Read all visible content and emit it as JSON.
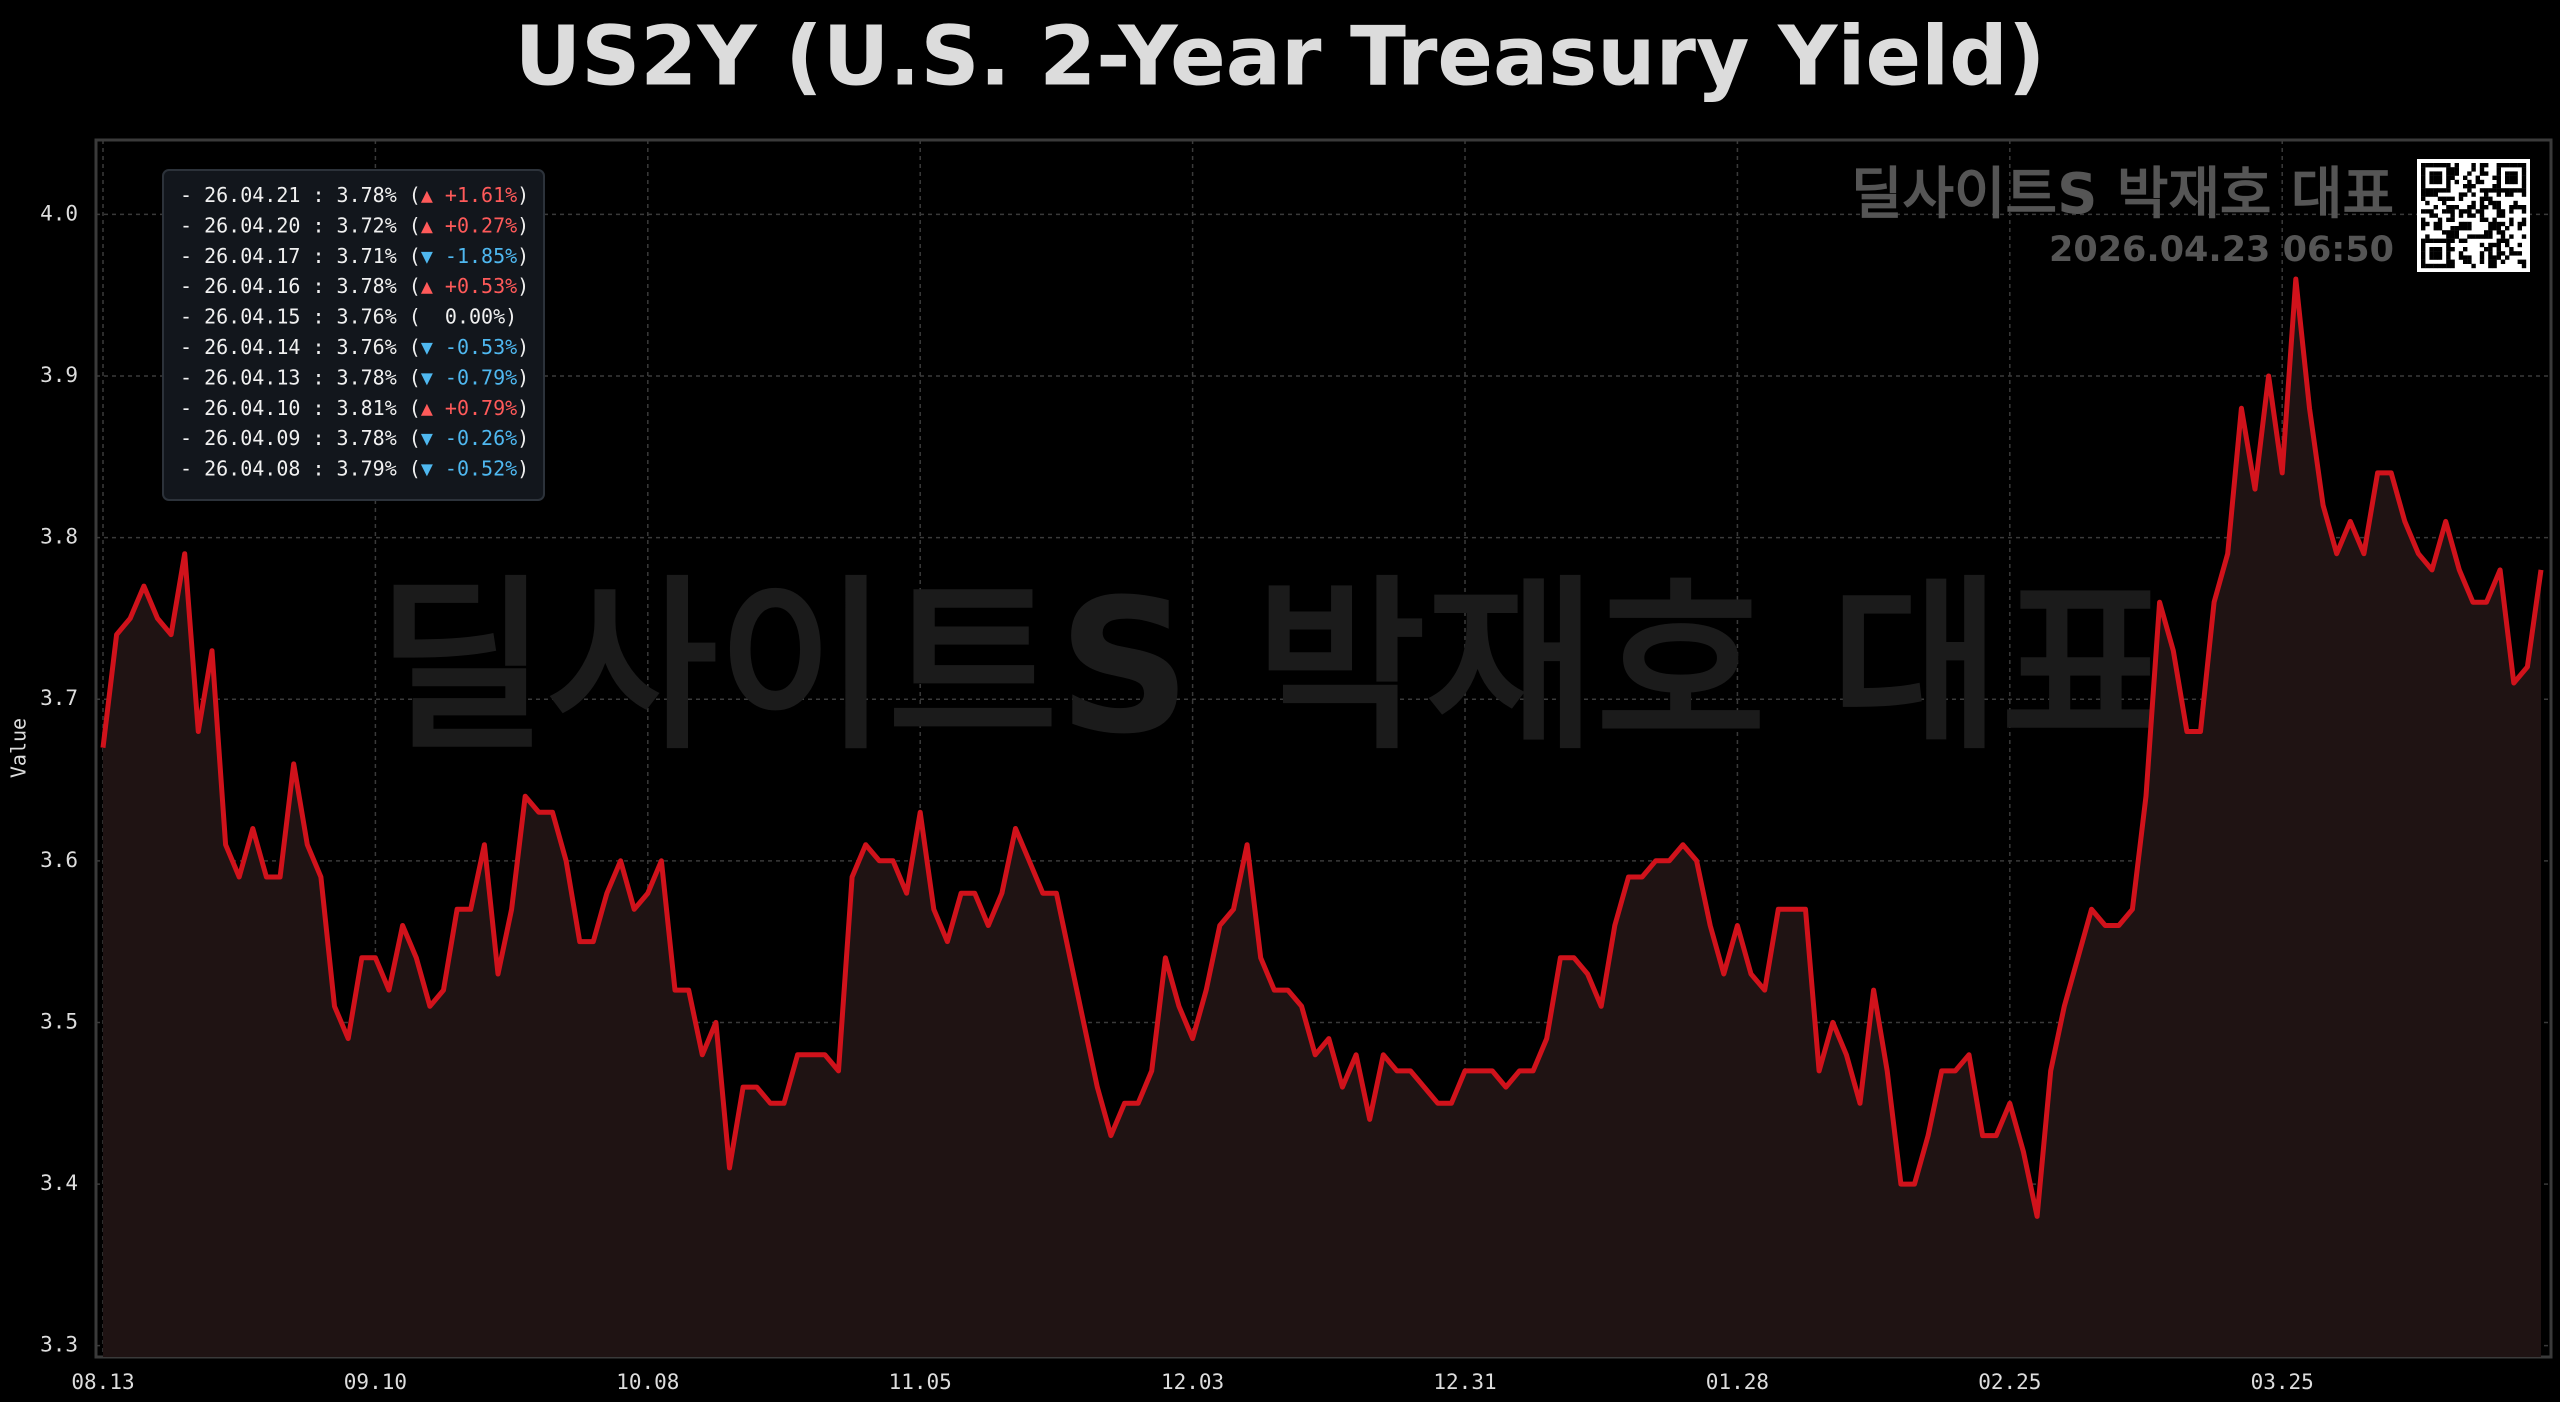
{
  "chart_data": {
    "type": "line",
    "title": "US2Y (U.S. 2-Year Treasury Yield)",
    "ylabel": "Value",
    "watermark": "딜사이트S 박재호 대표",
    "brand": "딜사이트S 박재호 대표",
    "timestamp": "2026.04.23 06:50",
    "color": "#d0121b",
    "fill_color": "#1f1313",
    "grid": true,
    "ylim": [
      3.293,
      4.046
    ],
    "yticks": [
      3.3,
      3.4,
      3.5,
      3.6,
      3.7,
      3.8,
      3.9,
      {
        "value": 4,
        "label": "4.0"
      }
    ],
    "categories": [
      "08.13",
      null,
      null,
      null,
      null,
      null,
      null,
      null,
      null,
      null,
      null,
      null,
      null,
      null,
      null,
      null,
      null,
      null,
      null,
      null,
      "09.10",
      null,
      null,
      null,
      null,
      null,
      null,
      null,
      null,
      null,
      null,
      null,
      null,
      null,
      null,
      null,
      null,
      null,
      null,
      null,
      "10.08",
      null,
      null,
      null,
      null,
      null,
      null,
      null,
      null,
      null,
      null,
      null,
      null,
      null,
      null,
      null,
      null,
      null,
      null,
      null,
      "11.05",
      null,
      null,
      null,
      null,
      null,
      null,
      null,
      null,
      null,
      null,
      null,
      null,
      null,
      null,
      null,
      null,
      null,
      null,
      null,
      "12.03",
      null,
      null,
      null,
      null,
      null,
      null,
      null,
      null,
      null,
      null,
      null,
      null,
      null,
      null,
      null,
      null,
      null,
      null,
      null,
      "12.31",
      null,
      null,
      null,
      null,
      null,
      null,
      null,
      null,
      null,
      null,
      null,
      null,
      null,
      null,
      null,
      null,
      null,
      null,
      null,
      "01.28",
      null,
      null,
      null,
      null,
      null,
      null,
      null,
      null,
      null,
      null,
      null,
      null,
      null,
      null,
      null,
      null,
      null,
      null,
      null,
      "02.25",
      null,
      null,
      null,
      null,
      null,
      null,
      null,
      null,
      null,
      null,
      null,
      null,
      null,
      null,
      null,
      null,
      null,
      null,
      null,
      "03.25",
      null,
      null,
      null,
      null,
      null,
      null,
      null,
      null,
      null,
      null,
      null,
      null,
      null,
      null,
      null,
      null,
      null,
      null,
      null
    ],
    "values": [
      3.67,
      3.74,
      3.75,
      3.77,
      3.75,
      3.74,
      3.79,
      3.68,
      3.73,
      3.61,
      3.59,
      3.62,
      3.59,
      3.59,
      3.66,
      3.61,
      3.59,
      3.51,
      3.49,
      3.54,
      3.54,
      3.52,
      3.56,
      3.54,
      3.51,
      3.52,
      3.57,
      3.57,
      3.61,
      3.53,
      3.57,
      3.64,
      3.63,
      3.63,
      3.6,
      3.55,
      3.55,
      3.58,
      3.6,
      3.57,
      3.58,
      3.6,
      3.52,
      3.52,
      3.48,
      3.5,
      3.41,
      3.46,
      3.46,
      3.45,
      3.45,
      3.48,
      3.48,
      3.48,
      3.47,
      3.59,
      3.61,
      3.6,
      3.6,
      3.58,
      3.63,
      3.57,
      3.55,
      3.58,
      3.58,
      3.56,
      3.58,
      3.62,
      3.6,
      3.58,
      3.58,
      3.54,
      3.5,
      3.46,
      3.43,
      3.45,
      3.45,
      3.47,
      3.54,
      3.51,
      3.49,
      3.52,
      3.56,
      3.57,
      3.61,
      3.54,
      3.52,
      3.52,
      3.51,
      3.48,
      3.49,
      3.46,
      3.48,
      3.44,
      3.48,
      3.47,
      3.47,
      3.46,
      3.45,
      3.45,
      3.47,
      3.47,
      3.47,
      3.46,
      3.47,
      3.47,
      3.49,
      3.54,
      3.54,
      3.53,
      3.51,
      3.56,
      3.59,
      3.59,
      3.6,
      3.6,
      3.61,
      3.6,
      3.56,
      3.53,
      3.56,
      3.53,
      3.52,
      3.57,
      3.57,
      3.57,
      3.47,
      3.5,
      3.48,
      3.45,
      3.52,
      3.47,
      3.4,
      3.4,
      3.43,
      3.47,
      3.47,
      3.48,
      3.43,
      3.43,
      3.45,
      3.42,
      3.38,
      3.47,
      3.51,
      3.54,
      3.57,
      3.56,
      3.56,
      3.57,
      3.64,
      3.76,
      3.73,
      3.68,
      3.68,
      3.76,
      3.79,
      3.88,
      3.83,
      3.9,
      3.84,
      3.96,
      3.88,
      3.82,
      3.79,
      3.81,
      3.79,
      3.84,
      3.84,
      3.81,
      3.79,
      3.78,
      3.81,
      3.78,
      3.76,
      3.76,
      3.78,
      3.71,
      3.72,
      3.78
    ],
    "recent": [
      {
        "text": "- 26.04.21 : 3.78% (",
        "change": "▲ +1.61%",
        "close": ")",
        "color": "#ff5a5a"
      },
      {
        "text": "- 26.04.20 : 3.72% (",
        "change": "▲ +0.27%",
        "close": ")",
        "color": "#ff5a5a"
      },
      {
        "text": "- 26.04.17 : 3.71% (",
        "change": "▼ -1.85%",
        "close": ")",
        "color": "#4fb8f0"
      },
      {
        "text": "- 26.04.16 : 3.78% (",
        "change": "▲ +0.53%",
        "close": ")",
        "color": "#ff5a5a"
      },
      {
        "text": "- 26.04.15 : 3.76% (",
        "change": "  0.00%",
        "close": ")",
        "color": "#f0f0f0"
      },
      {
        "text": "- 26.04.14 : 3.76% (",
        "change": "▼ -0.53%",
        "close": ")",
        "color": "#4fb8f0"
      },
      {
        "text": "- 26.04.13 : 3.78% (",
        "change": "▼ -0.79%",
        "close": ")",
        "color": "#4fb8f0"
      },
      {
        "text": "- 26.04.10 : 3.81% (",
        "change": "▲ +0.79%",
        "close": ")",
        "color": "#ff5a5a"
      },
      {
        "text": "- 26.04.09 : 3.78% (",
        "change": "▼ -0.26%",
        "close": ")",
        "color": "#4fb8f0"
      },
      {
        "text": "- 26.04.08 : 3.79% (",
        "change": "▼ -0.52%",
        "close": ")",
        "color": "#4fb8f0"
      }
    ]
  }
}
